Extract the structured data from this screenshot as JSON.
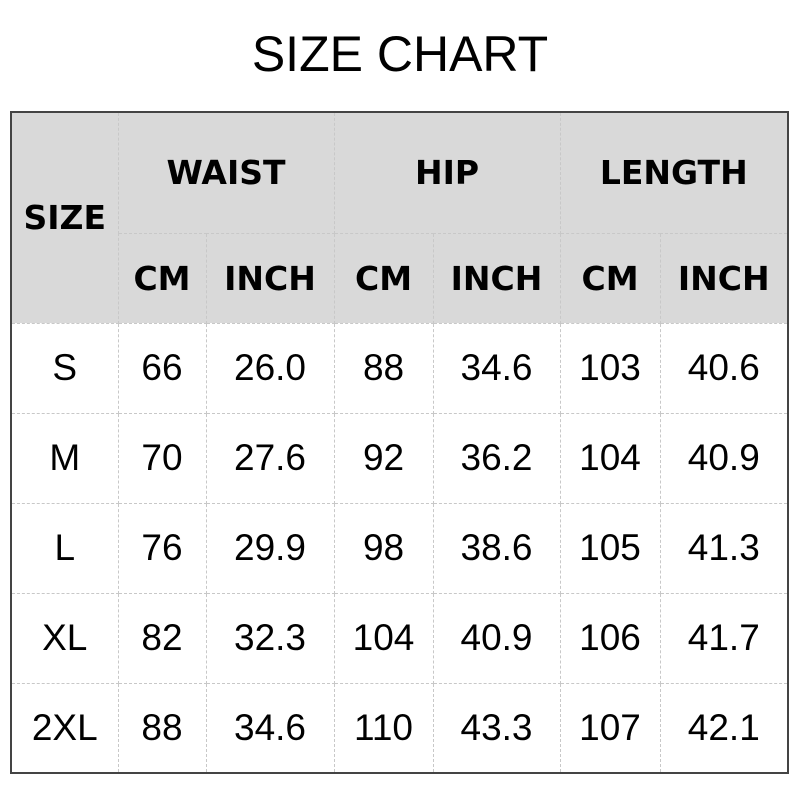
{
  "title": "SIZE CHART",
  "header": {
    "size": "SIZE",
    "groups": [
      "WAIST",
      "HIP",
      "LENGTH"
    ],
    "units": [
      "CM",
      "INCH",
      "CM",
      "INCH",
      "CM",
      "INCH"
    ]
  },
  "rows": [
    [
      "S",
      "66",
      "26.0",
      "88",
      "34.6",
      "103",
      "40.6"
    ],
    [
      "M",
      "70",
      "27.6",
      "92",
      "36.2",
      "104",
      "40.9"
    ],
    [
      "L",
      "76",
      "29.9",
      "98",
      "38.6",
      "105",
      "41.3"
    ],
    [
      "XL",
      "82",
      "32.3",
      "104",
      "40.9",
      "106",
      "41.7"
    ],
    [
      "2XL",
      "88",
      "34.6",
      "110",
      "43.3",
      "107",
      "42.1"
    ]
  ],
  "colors": {
    "header_bg": "#d9d9d9",
    "border": "#444444",
    "grid": "#c8c8c8"
  }
}
